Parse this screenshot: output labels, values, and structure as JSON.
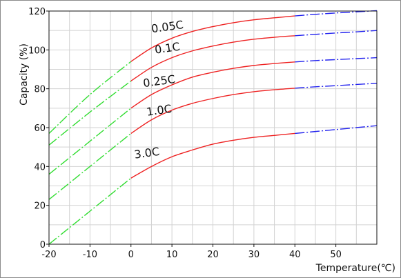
{
  "chart_data": {
    "type": "line",
    "title": "",
    "xlabel": "Temperature(℃)",
    "ylabel": "Capacity (%)",
    "xlim": [
      -20,
      60
    ],
    "ylim": [
      0,
      120
    ],
    "xticks": [
      -20,
      -10,
      0,
      10,
      20,
      30,
      40,
      50
    ],
    "yticks": [
      0,
      20,
      40,
      60,
      80,
      100,
      120
    ],
    "grid": true,
    "legend": "none",
    "segment_colors": {
      "below_0": "#33dd33",
      "between_0_and_40": "#ee2222",
      "above_40": "#2222ee"
    },
    "series": [
      {
        "name": "0.05C",
        "x": [
          -20,
          -10,
          0,
          5,
          10,
          15,
          20,
          25,
          30,
          35,
          40,
          45,
          50,
          55,
          60
        ],
        "y": [
          57,
          77,
          94,
          101,
          106,
          109.5,
          112,
          114,
          115.5,
          116.5,
          117.5,
          118.3,
          119,
          119.6,
          120.2
        ]
      },
      {
        "name": "0.1C",
        "x": [
          -20,
          -10,
          0,
          5,
          10,
          15,
          20,
          25,
          30,
          35,
          40,
          45,
          50,
          55,
          60
        ],
        "y": [
          51,
          68,
          84,
          91,
          96,
          99.5,
          102,
          104,
          105.5,
          106.5,
          107.3,
          108,
          108.7,
          109.3,
          110
        ]
      },
      {
        "name": "0.25C",
        "x": [
          -20,
          -10,
          0,
          5,
          10,
          15,
          20,
          25,
          30,
          35,
          40,
          45,
          50,
          55,
          60
        ],
        "y": [
          36,
          53,
          70,
          77,
          82,
          86,
          88.5,
          90.5,
          92,
          93,
          93.8,
          94.5,
          95,
          95.5,
          96
        ]
      },
      {
        "name": "1.0C",
        "x": [
          -20,
          -10,
          0,
          5,
          10,
          15,
          20,
          25,
          30,
          35,
          40,
          45,
          50,
          55,
          60
        ],
        "y": [
          23,
          40,
          57,
          64,
          69,
          72.5,
          75,
          77,
          78.5,
          79.5,
          80.3,
          81,
          81.6,
          82.2,
          82.8
        ]
      },
      {
        "name": "3.0C",
        "x": [
          -20,
          -10,
          0,
          5,
          10,
          15,
          20,
          25,
          30,
          35,
          40,
          45,
          50,
          55,
          60
        ],
        "y": [
          0,
          17,
          34,
          40,
          45,
          48.5,
          51.5,
          53.5,
          55,
          56,
          57,
          58,
          59,
          60,
          61
        ]
      }
    ],
    "curve_labels": [
      {
        "text": "0.05C",
        "x": 9,
        "y": 110
      },
      {
        "text": "0.1C",
        "x": 9,
        "y": 99
      },
      {
        "text": "0.25C",
        "x": 7,
        "y": 82
      },
      {
        "text": "1.0C",
        "x": 7,
        "y": 67
      },
      {
        "text": "3.0C",
        "x": 4,
        "y": 45
      }
    ]
  }
}
